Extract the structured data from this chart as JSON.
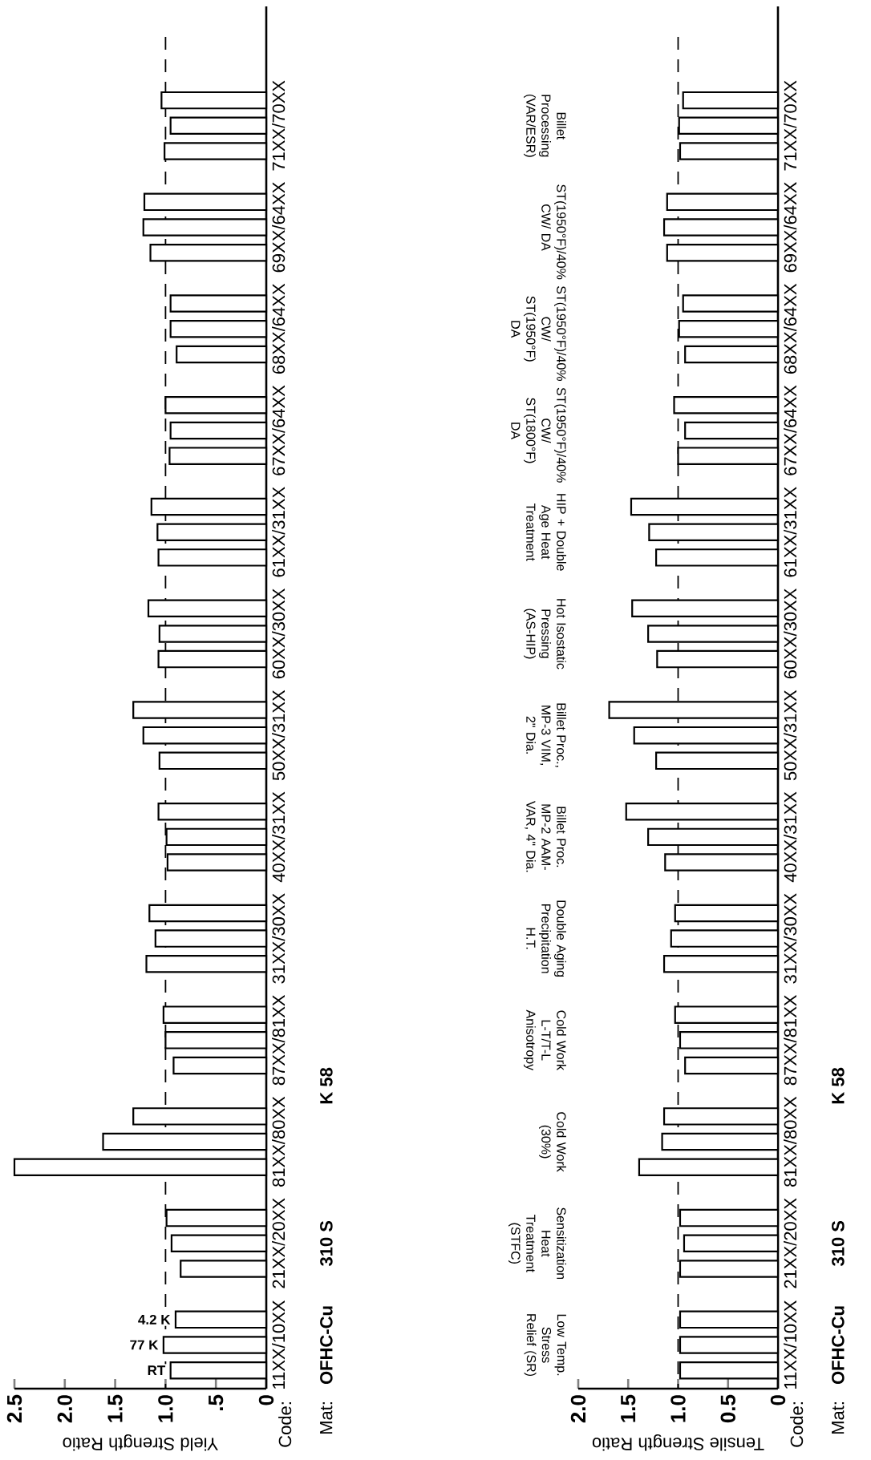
{
  "chart_data": [
    {
      "type": "bar",
      "orientation": "horizontal",
      "xlabel": "Yield Strength Ratio",
      "categories": [
        "71XX/70XX",
        "69XX/64XX",
        "68XX/64XX",
        "67XX/64XX",
        "61XX/31XX",
        "60XX/30XX",
        "50XX/31XX",
        "40XX/31XX",
        "31XX/30XX",
        "87XX/81XX",
        "81XX/80XX",
        "21XX/20XX",
        "11XX/10XX"
      ],
      "series": [
        {
          "name": "4.2 K",
          "color": "#ffffff",
          "values": [
            1.04,
            1.21,
            0.95,
            1.0,
            1.14,
            1.17,
            1.32,
            1.07,
            1.16,
            1.02,
            1.32,
            0.99,
            0.9
          ]
        },
        {
          "name": "77 K",
          "color": "#ffffff",
          "values": [
            0.95,
            1.22,
            0.95,
            0.95,
            1.08,
            1.06,
            1.22,
            0.99,
            1.1,
            1.0,
            1.62,
            0.94,
            1.02
          ]
        },
        {
          "name": "RT",
          "color": "#ffffff",
          "values": [
            1.01,
            1.15,
            0.89,
            0.96,
            1.07,
            1.07,
            1.06,
            0.98,
            1.19,
            0.92,
            2.5,
            0.85,
            0.95
          ]
        }
      ],
      "xlim": [
        2.5,
        0
      ],
      "xticks": [
        {
          "value": 2.5,
          "label": "2.5"
        },
        {
          "value": 2.0,
          "label": "2.0"
        },
        {
          "value": 1.5,
          "label": "1.5"
        },
        {
          "value": 1.0,
          "label": "1.0"
        },
        {
          "value": 0.5,
          "label": ".5"
        },
        0
      ],
      "ref_lines": [
        {
          "axis": "x",
          "value": 1.0,
          "line_style": "dashed"
        }
      ],
      "annotations": [
        "Code:",
        "Mat:",
        "OFHC-Cu",
        "310 S",
        "K 58"
      ]
    },
    {
      "type": "bar",
      "orientation": "horizontal",
      "xlabel": "Tensile Strength Ratio",
      "categories": [
        "71XX/70XX",
        "69XX/64XX",
        "68XX/64XX",
        "67XX/64XX",
        "61XX/31XX",
        "60XX/30XX",
        "50XX/31XX",
        "40XX/31XX",
        "31XX/30XX",
        "87XX/81XX",
        "81XX/80XX",
        "21XX/20XX",
        "11XX/10XX"
      ],
      "series": [
        {
          "color": "#ffffff",
          "values": [
            0.95,
            1.11,
            0.95,
            1.04,
            1.47,
            1.46,
            1.69,
            1.52,
            1.03,
            1.03,
            1.14,
            0.98,
            0.98
          ]
        },
        {
          "color": "#ffffff",
          "values": [
            0.99,
            1.14,
            0.99,
            0.93,
            1.29,
            1.3,
            1.44,
            1.3,
            1.07,
            0.98,
            1.16,
            0.94,
            0.98
          ]
        },
        {
          "color": "#ffffff",
          "values": [
            0.98,
            1.11,
            0.93,
            1.0,
            1.22,
            1.21,
            1.22,
            1.13,
            1.14,
            0.93,
            1.39,
            0.98,
            0.98
          ]
        }
      ],
      "xlim": [
        2.0,
        0
      ],
      "xticks": [
        {
          "value": 2.0,
          "label": "2.0"
        },
        {
          "value": 1.5,
          "label": "1.5"
        },
        {
          "value": 1.0,
          "label": "1.0"
        },
        0.5,
        0
      ],
      "ref_lines": [
        {
          "axis": "x",
          "value": 1.0,
          "line_style": "dashed"
        }
      ],
      "annotations": [
        "Billet Processing (VAR/ESR)",
        "ST(1950°F)/40% CW/ DA",
        "ST(1950°F)/40% CW/ ST(1950°F) DA",
        "ST(1950°F)/40% CW/ ST(1800°F) DA",
        "HIP + Double Age Heat Treatment",
        "Hot Isostatic Pressing (AS-HIP)",
        "Billet Proc., MP-3 VIM, 2\" Dia.",
        "Billet Proc. MP-2 AAM-VAR, 4\" Dia.",
        "Double Aging Precipitation H.T.",
        "Cold Work L-T/T-L Anisotropy",
        "Cold Work (30%)",
        "Sensitization Heat Treatment (STFC)",
        "Low Temp. Stress Relief (SR)",
        "Code:",
        "Mat:",
        "OFHC-Cu",
        "310 S",
        "K 58"
      ]
    }
  ]
}
